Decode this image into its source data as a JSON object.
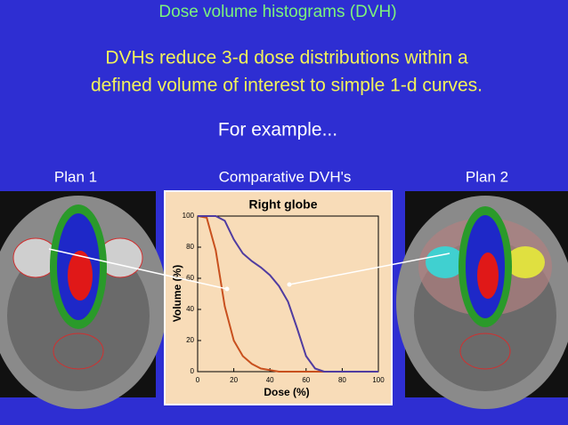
{
  "slide": {
    "title": "Dose volume histograms (DVH)",
    "body_lines": [
      "DVHs reduce 3-d dose distributions within a",
      "defined volume of interest to simple 1-d curves."
    ],
    "example": "For example...",
    "left_caption": "Plan 1",
    "center_caption": "Comparative DVH's",
    "right_caption": "Plan 2"
  },
  "chart_data": {
    "type": "line",
    "title": "Right globe",
    "x_label": "Dose (%)",
    "y_label": "Volume (%)",
    "x": [
      0,
      5,
      10,
      15,
      20,
      25,
      30,
      35,
      40,
      45,
      50,
      55,
      60,
      65,
      70,
      80,
      90,
      100
    ],
    "series": [
      {
        "color": "#c8501e",
        "values": [
          100,
          99,
          78,
          42,
          20,
          10,
          5,
          2,
          1,
          0,
          0,
          0,
          0,
          0,
          0,
          0,
          0,
          0
        ]
      },
      {
        "color": "#503ca0",
        "values": [
          100,
          100,
          100,
          97,
          85,
          76,
          71,
          67,
          62,
          55,
          45,
          28,
          10,
          2,
          0,
          0,
          0,
          0
        ]
      }
    ],
    "xlim": [
      0,
      100
    ],
    "ylim": [
      0,
      100
    ],
    "xticks": [
      0,
      20,
      40,
      60,
      80,
      100
    ],
    "yticks": [
      0,
      20,
      40,
      60,
      80,
      100
    ]
  }
}
